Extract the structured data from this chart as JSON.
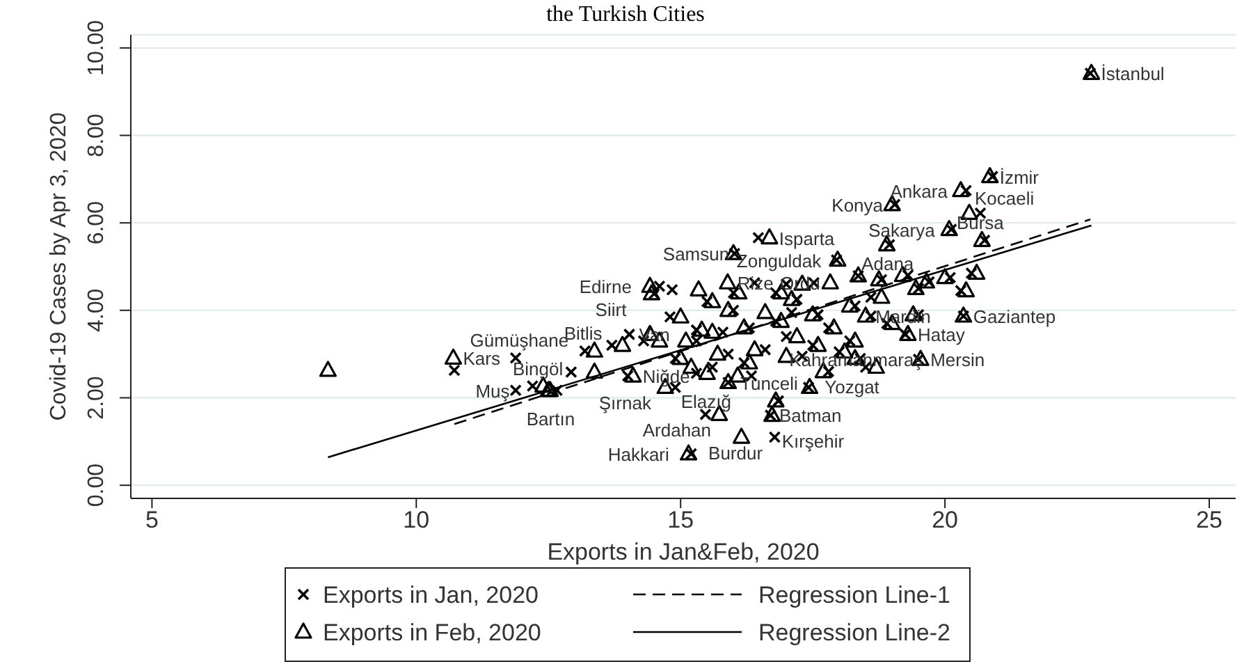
{
  "chart_data": {
    "type": "scatter",
    "title": "the Turkish Cities",
    "xlabel": "Exports in Jan&Feb, 2020",
    "ylabel": "Covid-19 Cases by Apr 3, 2020",
    "xlim": [
      4.6,
      25.5
    ],
    "xticks": [
      5,
      10,
      15,
      20,
      25
    ],
    "ylim": [
      -0.3,
      10.3
    ],
    "yticks": [
      {
        "value": 0,
        "label": "0.00"
      },
      {
        "value": 2,
        "label": "2.00"
      },
      {
        "value": 4,
        "label": "4.00"
      },
      {
        "value": 6,
        "label": "6.00"
      },
      {
        "value": 8,
        "label": "8.00"
      },
      {
        "value": 10,
        "label": "10.00"
      }
    ],
    "grid": "y",
    "legend": "bottom",
    "series": [
      {
        "name": "Exports in Jan, 2020",
        "marker": "cross",
        "color": "#000000",
        "x": [
          22.75,
          20.9,
          20.4,
          19.05,
          20.67,
          20.12,
          20.75,
          18.95,
          16.47,
          16.02,
          17.95,
          14.6,
          14.5,
          14.84,
          16.4,
          17.52,
          18.36,
          18.8,
          19.3,
          19.7,
          20.1,
          19.5,
          20.3,
          20.5,
          16.0,
          16.8,
          17.2,
          15.5,
          17.6,
          20.35,
          18.6,
          19.25,
          18.2,
          19.5,
          18.4,
          16.34,
          17.42,
          14.9,
          16.85,
          15.47,
          16.7,
          16.78,
          15.2,
          11.88,
          10.72,
          11.88,
          12.2,
          12.66,
          13.19,
          14.03,
          13.7,
          12.93,
          15.3,
          15.6,
          16.2,
          15.9,
          16.6,
          15.3,
          15.8,
          16.3,
          16.8,
          17.0,
          17.5,
          17.3,
          17.8,
          18.0,
          16.0,
          14.8,
          14.3,
          14.9,
          18.3,
          18.9,
          17.8,
          18.5,
          17.1,
          17.0,
          15.3,
          15.9,
          19.5,
          18.6,
          14.0
        ],
        "values": [
          9.42,
          7.06,
          6.74,
          6.42,
          6.22,
          5.85,
          5.6,
          5.5,
          5.66,
          5.3,
          5.15,
          4.55,
          4.38,
          4.47,
          4.63,
          4.63,
          4.79,
          4.7,
          4.8,
          4.65,
          4.75,
          4.5,
          4.45,
          4.85,
          4.4,
          4.4,
          4.25,
          4.2,
          3.9,
          3.87,
          3.87,
          3.45,
          3.3,
          2.88,
          2.9,
          2.5,
          2.24,
          2.24,
          1.93,
          1.62,
          1.6,
          1.1,
          0.72,
          2.91,
          2.63,
          2.17,
          2.27,
          2.17,
          3.07,
          3.45,
          3.2,
          2.59,
          2.56,
          2.7,
          2.8,
          3.0,
          3.1,
          3.3,
          3.5,
          3.6,
          3.75,
          3.4,
          3.2,
          2.95,
          3.6,
          3.05,
          4.0,
          3.85,
          3.3,
          2.9,
          4.1,
          3.7,
          2.6,
          2.7,
          3.95,
          4.6,
          3.55,
          2.35,
          3.9,
          4.3,
          2.5
        ]
      },
      {
        "name": "Regression Line-1",
        "type": "line",
        "line_style": "dashed",
        "color": "#000000",
        "x": [
          10.72,
          22.75
        ],
        "values": [
          1.4,
          6.08
        ]
      },
      {
        "name": "Exports in Feb, 2020",
        "marker": "triangle",
        "color": "#000000",
        "x": [
          22.77,
          20.85,
          20.3,
          19.0,
          20.46,
          20.08,
          20.7,
          18.9,
          16.68,
          16.0,
          17.97,
          14.42,
          14.45,
          15.34,
          15.89,
          17.83,
          18.36,
          18.75,
          19.2,
          19.65,
          20.0,
          19.45,
          20.4,
          20.6,
          16.1,
          16.9,
          17.1,
          15.6,
          17.5,
          20.35,
          18.5,
          19.3,
          18.3,
          19.54,
          18.3,
          16.08,
          17.44,
          14.71,
          16.8,
          15.73,
          16.73,
          16.15,
          15.15,
          10.7,
          8.33,
          12.53,
          12.4,
          12.5,
          13.37,
          14.42,
          13.9,
          13.37,
          15.5,
          15.2,
          16.3,
          15.7,
          16.4,
          15.1,
          15.6,
          16.2,
          16.9,
          17.2,
          17.6,
          17.0,
          17.9,
          18.1,
          15.9,
          15.0,
          14.6,
          15.0,
          18.2,
          19.0,
          17.7,
          18.7,
          16.6,
          17.3,
          15.4,
          15.9,
          19.4,
          18.8,
          14.1
        ],
        "values": [
          9.42,
          7.06,
          6.74,
          6.42,
          6.22,
          5.85,
          5.6,
          5.5,
          5.66,
          5.3,
          5.15,
          4.55,
          4.38,
          4.47,
          4.63,
          4.63,
          4.79,
          4.7,
          4.8,
          4.65,
          4.75,
          4.5,
          4.45,
          4.85,
          4.4,
          4.4,
          4.25,
          4.2,
          3.9,
          3.87,
          3.87,
          3.45,
          3.3,
          2.88,
          2.9,
          2.5,
          2.24,
          2.24,
          1.93,
          1.62,
          1.6,
          1.1,
          0.72,
          2.91,
          2.63,
          2.17,
          2.27,
          2.17,
          3.07,
          3.45,
          3.2,
          2.59,
          2.56,
          2.7,
          2.8,
          3.0,
          3.1,
          3.3,
          3.5,
          3.6,
          3.75,
          3.4,
          3.2,
          2.95,
          3.6,
          3.05,
          4.0,
          3.85,
          3.3,
          2.9,
          4.1,
          3.7,
          2.6,
          2.7,
          3.95,
          4.6,
          3.55,
          2.35,
          3.9,
          4.3,
          2.5
        ]
      },
      {
        "name": "Regression Line-2",
        "type": "line",
        "line_style": "solid",
        "color": "#000000",
        "x": [
          8.33,
          22.77
        ],
        "values": [
          0.64,
          5.94
        ]
      }
    ],
    "annotations": [
      {
        "text": "İstanbul",
        "x": 22.77,
        "y": 9.42
      },
      {
        "text": "İzmir",
        "x": 20.85,
        "y": 7.06
      },
      {
        "text": "Ankara",
        "x": 20.3,
        "y": 6.74
      },
      {
        "text": "Konya",
        "x": 19.0,
        "y": 6.42
      },
      {
        "text": "Kocaeli",
        "x": 20.46,
        "y": 6.22
      },
      {
        "text": "Sakarya",
        "x": 20.08,
        "y": 5.85
      },
      {
        "text": "Bursa",
        "x": 20.7,
        "y": 5.6
      },
      {
        "text": "Adana",
        "x": 18.9,
        "y": 5.5
      },
      {
        "text": "Isparta",
        "x": 16.68,
        "y": 5.66
      },
      {
        "text": "Samsun",
        "x": 16.0,
        "y": 5.3
      },
      {
        "text": "Zonguldak",
        "x": 17.97,
        "y": 5.15
      },
      {
        "text": "Edirne",
        "x": 14.42,
        "y": 4.55
      },
      {
        "text": "Siirt",
        "x": 14.45,
        "y": 4.38
      },
      {
        "text": "Rize",
        "x": 15.89,
        "y": 4.63
      },
      {
        "text": "Ordu",
        "x": 17.83,
        "y": 4.63
      },
      {
        "text": "Gaziantep",
        "x": 20.35,
        "y": 3.87
      },
      {
        "text": "Mardin",
        "x": 18.5,
        "y": 3.87
      },
      {
        "text": "Hatay",
        "x": 19.3,
        "y": 3.45
      },
      {
        "text": "Kahramanmaraş",
        "x": 18.3,
        "y": 3.3
      },
      {
        "text": "Mersin",
        "x": 19.54,
        "y": 2.88
      },
      {
        "text": "Yozgat",
        "x": 18.3,
        "y": 2.9
      },
      {
        "text": "Elazığ",
        "x": 16.34,
        "y": 2.5
      },
      {
        "text": "Batman",
        "x": 17.44,
        "y": 2.24
      },
      {
        "text": "Şırnak",
        "x": 14.71,
        "y": 2.24
      },
      {
        "text": "Tunceli",
        "x": 16.8,
        "y": 1.93
      },
      {
        "text": "Ardahan",
        "x": 15.73,
        "y": 1.62
      },
      {
        "text": "Kırşehir",
        "x": 16.73,
        "y": 1.6
      },
      {
        "text": "Burdur",
        "x": 16.78,
        "y": 1.1
      },
      {
        "text": "Hakkari",
        "x": 15.15,
        "y": 0.72
      },
      {
        "text": "Kars",
        "x": 10.7,
        "y": 2.91
      },
      {
        "text": "Muş",
        "x": 11.88,
        "y": 2.17
      },
      {
        "text": "Gümüşhane",
        "x": 11.88,
        "y": 2.91
      },
      {
        "text": "Bingöl",
        "x": 12.4,
        "y": 2.27
      },
      {
        "text": "Bartın",
        "x": 12.66,
        "y": 2.17
      },
      {
        "text": "Bitlis",
        "x": 13.37,
        "y": 3.07
      },
      {
        "text": "Van",
        "x": 14.03,
        "y": 3.45
      },
      {
        "text": "Niğde",
        "x": 14.1,
        "y": 2.5
      }
    ]
  }
}
